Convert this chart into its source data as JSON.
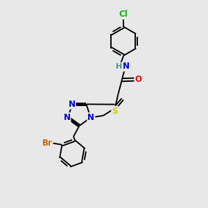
{
  "bg_color": "#e8e8e8",
  "atom_colors": {
    "N": "#0000cc",
    "O": "#ff0000",
    "S": "#cccc00",
    "Cl": "#00bb00",
    "Br": "#cc6600",
    "C": "#000000",
    "H": "#4a9090"
  },
  "font_size": 8.5,
  "bond_width": 1.4,
  "figsize": [
    3.0,
    3.0
  ],
  "dpi": 100
}
